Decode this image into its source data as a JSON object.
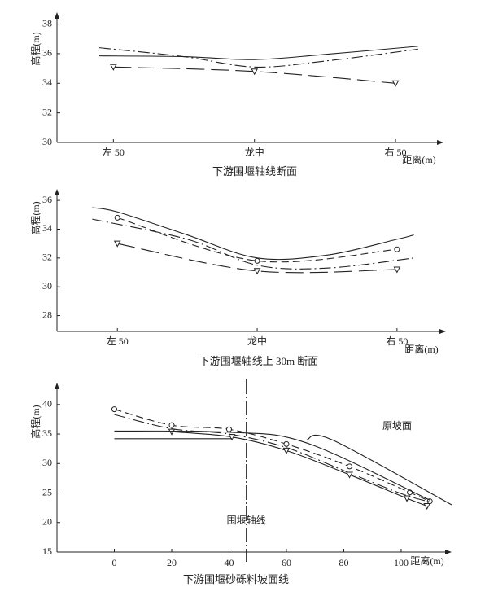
{
  "chart_data": [
    {
      "type": "line",
      "title": "下游围堰轴线断面",
      "ylabel": "高程(m)",
      "xlabel": "距离(m)",
      "xlim": [
        -70,
        67
      ],
      "ylim": [
        30,
        38.8
      ],
      "xticks": [
        {
          "value": -50,
          "label": "左 50"
        },
        {
          "value": 0,
          "label": "龙中"
        },
        {
          "value": 50,
          "label": "右 50"
        }
      ],
      "yticks": [
        30,
        32,
        34,
        36,
        38
      ],
      "series": [
        {
          "style": "solid",
          "marker": "none",
          "color": "#222222",
          "x": [
            -55,
            -25,
            0,
            25,
            58
          ],
          "values": [
            35.85,
            35.8,
            35.6,
            35.95,
            36.5
          ]
        },
        {
          "style": "dashdot",
          "marker": "none",
          "color": "#222222",
          "x": [
            -55,
            -25,
            0,
            25,
            58
          ],
          "values": [
            36.4,
            35.8,
            35.1,
            35.5,
            36.3
          ]
        },
        {
          "style": "longdash",
          "marker": "triangle",
          "color": "#222222",
          "x": [
            -50,
            0,
            50
          ],
          "values": [
            35.1,
            34.8,
            34.0
          ]
        }
      ]
    },
    {
      "type": "line",
      "title": "下游围堰轴线上 30m 断面",
      "ylabel": "高程(m)",
      "xlabel": "距离(m)",
      "xlim": [
        -71.6,
        67.5
      ],
      "ylim": [
        26.9,
        36.8
      ],
      "xticks": [
        {
          "value": -50,
          "label": "左 50"
        },
        {
          "value": 0,
          "label": "龙中"
        },
        {
          "value": 50,
          "label": "右 50"
        }
      ],
      "yticks": [
        28,
        30,
        32,
        34,
        36
      ],
      "series": [
        {
          "style": "solid",
          "marker": "none",
          "color": "#222222",
          "x": [
            -59,
            -50,
            -25,
            0,
            25,
            50,
            56
          ],
          "values": [
            35.5,
            35.2,
            33.6,
            32.0,
            32.2,
            33.3,
            33.6
          ]
        },
        {
          "style": "dashed",
          "marker": "circle",
          "color": "#222222",
          "x": [
            -50,
            0,
            50
          ],
          "values": [
            34.8,
            31.8,
            32.6
          ]
        },
        {
          "style": "dashdot",
          "marker": "none",
          "color": "#222222",
          "x": [
            -59,
            -25,
            0,
            25,
            56
          ],
          "values": [
            34.7,
            33.3,
            31.5,
            31.3,
            32.0
          ]
        },
        {
          "style": "longdash",
          "marker": "triangle",
          "color": "#222222",
          "x": [
            -50,
            0,
            50
          ],
          "values": [
            33.0,
            31.1,
            31.2
          ]
        }
      ]
    },
    {
      "type": "line",
      "title": "下游围堰砂砾料坡面线",
      "ylabel": "高程(m)",
      "xlabel": "距离(m)",
      "xlim": [
        -20,
        117.6
      ],
      "ylim": [
        15,
        43.7
      ],
      "xticks": [
        0,
        20,
        40,
        60,
        80,
        100
      ],
      "yticks": [
        15,
        20,
        25,
        30,
        35,
        40
      ],
      "vline": {
        "x": 46,
        "label": "围堰轴线"
      },
      "annotations": [
        "原坡面"
      ],
      "series": [
        {
          "style": "dashed",
          "marker": "circle",
          "color": "#222222",
          "x": [
            0,
            20,
            40,
            60,
            82,
            103,
            110
          ],
          "values": [
            39.2,
            36.5,
            35.8,
            33.3,
            29.5,
            25.1,
            23.6
          ]
        },
        {
          "style": "dashdot",
          "marker": "none",
          "color": "#222222",
          "x": [
            0,
            20,
            40,
            60,
            80,
            100,
            110
          ],
          "values": [
            38.3,
            35.9,
            35.0,
            32.7,
            28.8,
            24.9,
            23.5
          ]
        },
        {
          "style": "solid",
          "marker": "triangle",
          "color": "#222222",
          "x": [
            20,
            41,
            60,
            82,
            102,
            109
          ],
          "values": [
            35.4,
            34.5,
            32.2,
            28.1,
            24.1,
            22.8
          ]
        },
        {
          "style": "solid",
          "marker": "none",
          "color": "#222222",
          "x": [
            0,
            40,
            67,
            110
          ],
          "values": [
            35.5,
            35.3,
            33.5,
            23.8
          ]
        },
        {
          "style": "solid",
          "marker": "none",
          "color": "#222222",
          "x": [
            0,
            41
          ],
          "values": [
            34.2,
            34.2
          ]
        },
        {
          "style": "solid",
          "marker": "none",
          "color": "#222222",
          "x": [
            67,
            76,
            117.6
          ],
          "values": [
            34,
            34,
            23
          ]
        }
      ]
    }
  ]
}
